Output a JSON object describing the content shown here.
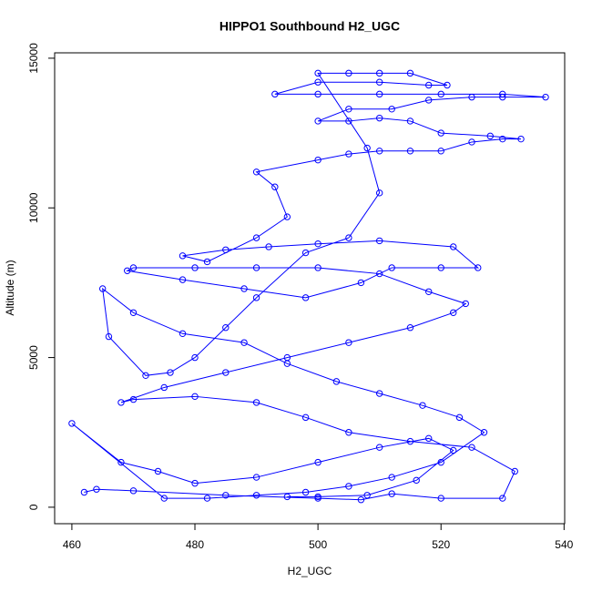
{
  "chart_data": {
    "type": "line",
    "title": "HIPPO1 Southbound H2_UGC",
    "x_label": "H2_UGC",
    "y_label": "Altitude (m)",
    "color": "#0000ff",
    "markers": true,
    "grid": false,
    "x": [
      462,
      464,
      470,
      485,
      500,
      507,
      512,
      520,
      530,
      532,
      525,
      515,
      505,
      498,
      490,
      480,
      470,
      468,
      475,
      485,
      495,
      505,
      515,
      522,
      524,
      518,
      510,
      500,
      490,
      480,
      470,
      469,
      478,
      488,
      498,
      507,
      512,
      520,
      526,
      522,
      510,
      500,
      492,
      485,
      478,
      482,
      490,
      495,
      493,
      490,
      500,
      505,
      510,
      515,
      520,
      525,
      530,
      533,
      528,
      520,
      515,
      510,
      505,
      500,
      505,
      512,
      518,
      525,
      530,
      537,
      530,
      520,
      510,
      500,
      493,
      500,
      510,
      518,
      521,
      515,
      510,
      505,
      500,
      508,
      510,
      505,
      498,
      490,
      485,
      480,
      476,
      472,
      466,
      465,
      470,
      478,
      488,
      495,
      503,
      510,
      517,
      523,
      527,
      520,
      512,
      505,
      498,
      490,
      482,
      475,
      460,
      468,
      474,
      480,
      490,
      500,
      510,
      518,
      522,
      516,
      508,
      500,
      495
    ],
    "values": [
      500,
      600,
      550,
      400,
      300,
      250,
      450,
      300,
      300,
      1200,
      2000,
      2200,
      2500,
      3000,
      3500,
      3700,
      3600,
      3500,
      4000,
      4500,
      5000,
      5500,
      6000,
      6500,
      6800,
      7200,
      7800,
      8000,
      8000,
      8000,
      8000,
      7900,
      7600,
      7300,
      7000,
      7500,
      8000,
      8000,
      8000,
      8700,
      8900,
      8800,
      8700,
      8600,
      8400,
      8200,
      9000,
      9700,
      10700,
      11200,
      11600,
      11800,
      11900,
      11900,
      11900,
      12200,
      12300,
      12300,
      12400,
      12500,
      12900,
      13000,
      12900,
      12900,
      13300,
      13300,
      13600,
      13700,
      13700,
      13700,
      13800,
      13800,
      13800,
      13800,
      13800,
      14200,
      14200,
      14100,
      14100,
      14500,
      14500,
      14500,
      14500,
      12000,
      10500,
      9000,
      8500,
      7000,
      6000,
      5000,
      4500,
      4400,
      5700,
      7300,
      6500,
      5800,
      5500,
      4800,
      4200,
      3800,
      3400,
      3000,
      2500,
      1500,
      1000,
      700,
      500,
      400,
      300,
      300,
      2800,
      1500,
      1200,
      800,
      1000,
      1500,
      2000,
      2300,
      1900,
      900,
      400,
      350,
      350
    ],
    "xlim": [
      457.2,
      540.1
    ],
    "ylim": [
      -550,
      15180
    ],
    "xticks": [
      460,
      480,
      500,
      520,
      540
    ],
    "yticks": [
      0,
      5000,
      10000,
      15000
    ]
  }
}
